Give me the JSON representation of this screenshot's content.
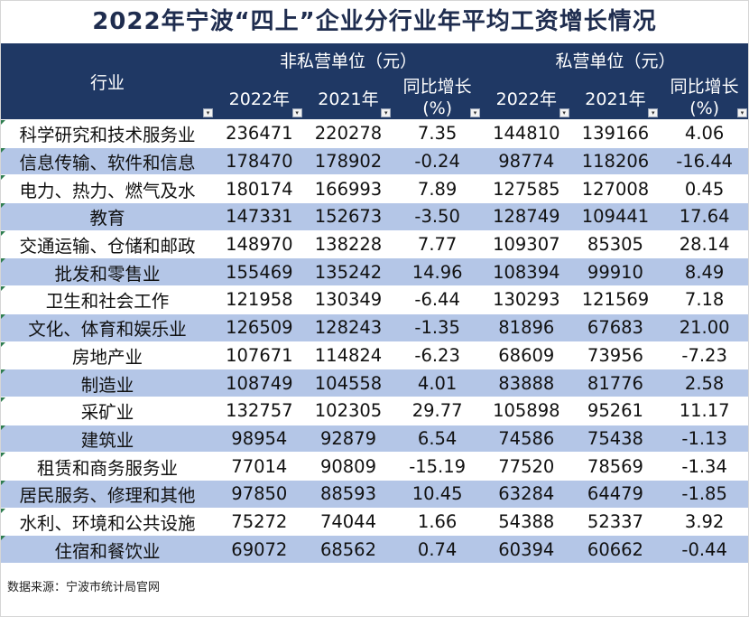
{
  "title": "2022年宁波“四上”企业分行业年平均工资增长情况",
  "header": {
    "industry": "行业",
    "group_nonprivate": "非私营单位（元）",
    "group_private": "私营单位（元）",
    "col_2022": "2022年",
    "col_2021": "2021年",
    "col_growth_line1": "同比增长",
    "col_growth_line2": "(%)"
  },
  "filter_icon": "▾",
  "rows": [
    {
      "industry": "科学研究和技术服务业",
      "np2022": "236471",
      "np2021": "220278",
      "npg": "7.35",
      "p2022": "144810",
      "p2021": "139166",
      "pg": "4.06"
    },
    {
      "industry": "信息传输、软件和信息",
      "np2022": "178470",
      "np2021": "178902",
      "npg": "-0.24",
      "p2022": "98774",
      "p2021": "118206",
      "pg": "-16.44"
    },
    {
      "industry": "电力、热力、燃气及水",
      "np2022": "180174",
      "np2021": "166993",
      "npg": "7.89",
      "p2022": "127585",
      "p2021": "127008",
      "pg": "0.45"
    },
    {
      "industry": "教育",
      "np2022": "147331",
      "np2021": "152673",
      "npg": "-3.50",
      "p2022": "128749",
      "p2021": "109441",
      "pg": "17.64"
    },
    {
      "industry": "交通运输、仓储和邮政",
      "np2022": "148970",
      "np2021": "138228",
      "npg": "7.77",
      "p2022": "109307",
      "p2021": "85305",
      "pg": "28.14"
    },
    {
      "industry": "批发和零售业",
      "np2022": "155469",
      "np2021": "135242",
      "npg": "14.96",
      "p2022": "108394",
      "p2021": "99910",
      "pg": "8.49"
    },
    {
      "industry": "卫生和社会工作",
      "np2022": "121958",
      "np2021": "130349",
      "npg": "-6.44",
      "p2022": "130293",
      "p2021": "121569",
      "pg": "7.18"
    },
    {
      "industry": "文化、体育和娱乐业",
      "np2022": "126509",
      "np2021": "128243",
      "npg": "-1.35",
      "p2022": "81896",
      "p2021": "67683",
      "pg": "21.00"
    },
    {
      "industry": "房地产业",
      "np2022": "107671",
      "np2021": "114824",
      "npg": "-6.23",
      "p2022": "68609",
      "p2021": "73956",
      "pg": "-7.23"
    },
    {
      "industry": "制造业",
      "np2022": "108749",
      "np2021": "104558",
      "npg": "4.01",
      "p2022": "83888",
      "p2021": "81776",
      "pg": "2.58"
    },
    {
      "industry": "采矿业",
      "np2022": "132757",
      "np2021": "102305",
      "npg": "29.77",
      "p2022": "105898",
      "p2021": "95261",
      "pg": "11.17"
    },
    {
      "industry": "建筑业",
      "np2022": "98954",
      "np2021": "92879",
      "npg": "6.54",
      "p2022": "74586",
      "p2021": "75438",
      "pg": "-1.13"
    },
    {
      "industry": "租赁和商务服务业",
      "np2022": "77014",
      "np2021": "90809",
      "npg": "-15.19",
      "p2022": "77520",
      "p2021": "78569",
      "pg": "-1.34"
    },
    {
      "industry": "居民服务、修理和其他",
      "np2022": "97850",
      "np2021": "88593",
      "npg": "10.45",
      "p2022": "63284",
      "p2021": "64479",
      "pg": "-1.85"
    },
    {
      "industry": "水利、环境和公共设施",
      "np2022": "75272",
      "np2021": "74044",
      "npg": "1.66",
      "p2022": "54388",
      "p2021": "52337",
      "pg": "3.92"
    },
    {
      "industry": "住宿和餐饮业",
      "np2022": "69072",
      "np2021": "68562",
      "npg": "0.74",
      "p2022": "60394",
      "p2021": "60662",
      "pg": "-0.44"
    }
  ],
  "source": "数据来源：宁波市统计局官网"
}
